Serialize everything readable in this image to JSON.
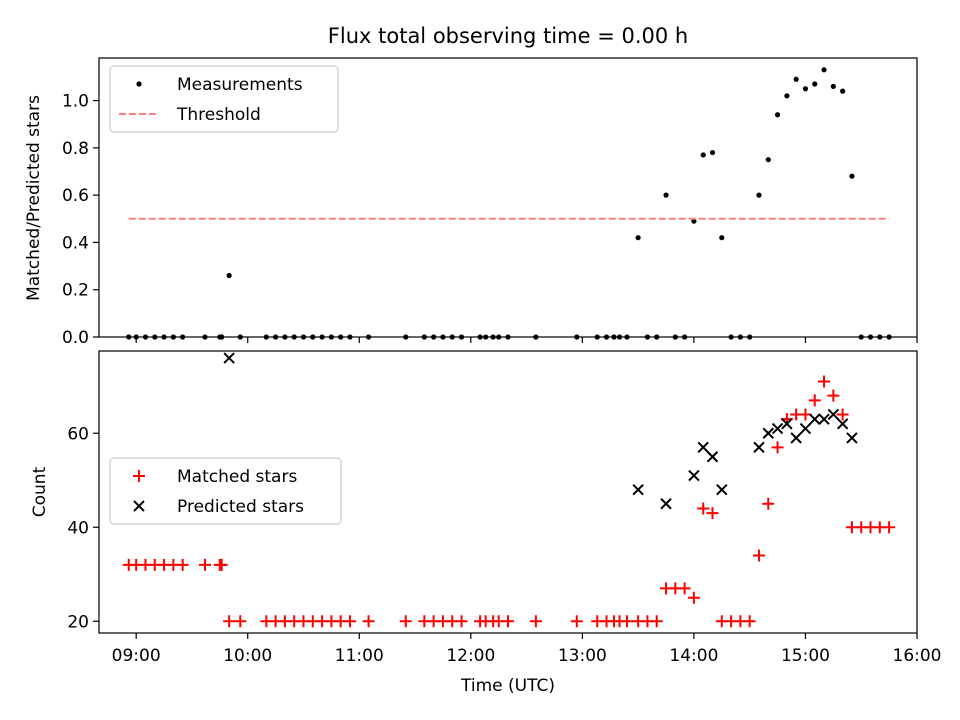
{
  "figure": {
    "title": "Flux total observing time = 0.00 h",
    "xlabel": "Time (UTC)",
    "x_tick_labels": [
      "09:00",
      "10:00",
      "11:00",
      "12:00",
      "13:00",
      "14:00",
      "15:00",
      "16:00"
    ],
    "colors": {
      "measurement": "#000000",
      "threshold": "#ff7f7f",
      "matched": "#ff0000",
      "predicted": "#000000"
    }
  },
  "chart_data": [
    {
      "type": "scatter",
      "title": "Flux total observing time = 0.00 h",
      "xlabel": "",
      "ylabel": "Matched/Predicted stars",
      "x_axis": "time (UTC)",
      "xlim": [
        "08:40",
        "16:00"
      ],
      "ylim": [
        0,
        1.18
      ],
      "yticks": [
        0.0,
        0.2,
        0.4,
        0.6,
        0.8,
        1.0
      ],
      "ytick_labels": [
        "0.0",
        "0.2",
        "0.4",
        "0.6",
        "0.8",
        "1.0"
      ],
      "legend_position": "upper-left",
      "legend": [
        "Measurements",
        "Threshold"
      ],
      "series": [
        {
          "name": "Measurements",
          "marker": "dot",
          "points": [
            [
              "08:56",
              0
            ],
            [
              "09:00",
              0
            ],
            [
              "09:05",
              0
            ],
            [
              "09:10",
              0
            ],
            [
              "09:15",
              0
            ],
            [
              "09:20",
              0
            ],
            [
              "09:25",
              0
            ],
            [
              "09:37",
              0
            ],
            [
              "09:45",
              0
            ],
            [
              "09:46",
              0
            ],
            [
              "09:50",
              0.26
            ],
            [
              "09:56",
              0
            ],
            [
              "10:10",
              0
            ],
            [
              "10:15",
              0
            ],
            [
              "10:20",
              0
            ],
            [
              "10:25",
              0
            ],
            [
              "10:30",
              0
            ],
            [
              "10:35",
              0
            ],
            [
              "10:40",
              0
            ],
            [
              "10:45",
              0
            ],
            [
              "10:50",
              0
            ],
            [
              "10:55",
              0
            ],
            [
              "11:05",
              0
            ],
            [
              "11:25",
              0
            ],
            [
              "11:35",
              0
            ],
            [
              "11:40",
              0
            ],
            [
              "11:45",
              0
            ],
            [
              "11:50",
              0
            ],
            [
              "11:55",
              0
            ],
            [
              "12:05",
              0
            ],
            [
              "12:08",
              0
            ],
            [
              "12:12",
              0
            ],
            [
              "12:15",
              0
            ],
            [
              "12:20",
              0
            ],
            [
              "12:35",
              0
            ],
            [
              "12:57",
              0
            ],
            [
              "13:08",
              0
            ],
            [
              "13:13",
              0
            ],
            [
              "13:17",
              0
            ],
            [
              "13:20",
              0
            ],
            [
              "13:24",
              0
            ],
            [
              "13:30",
              0.42
            ],
            [
              "13:35",
              0
            ],
            [
              "13:40",
              0
            ],
            [
              "13:45",
              0.6
            ],
            [
              "13:50",
              0
            ],
            [
              "13:55",
              0
            ],
            [
              "14:00",
              0.49
            ],
            [
              "14:05",
              0.77
            ],
            [
              "14:10",
              0.78
            ],
            [
              "14:15",
              0.42
            ],
            [
              "14:20",
              0
            ],
            [
              "14:25",
              0
            ],
            [
              "14:30",
              0
            ],
            [
              "14:35",
              0.6
            ],
            [
              "14:40",
              0.75
            ],
            [
              "14:45",
              0.94
            ],
            [
              "14:50",
              1.02
            ],
            [
              "14:55",
              1.09
            ],
            [
              "15:00",
              1.05
            ],
            [
              "15:05",
              1.07
            ],
            [
              "15:10",
              1.13
            ],
            [
              "15:15",
              1.06
            ],
            [
              "15:20",
              1.04
            ],
            [
              "15:25",
              0.68
            ],
            [
              "15:30",
              0
            ],
            [
              "15:35",
              0
            ],
            [
              "15:40",
              0
            ],
            [
              "15:45",
              0
            ]
          ]
        },
        {
          "name": "Threshold",
          "style": "dashed",
          "points": [
            [
              "08:56",
              0.5
            ],
            [
              "15:45",
              0.5
            ]
          ]
        }
      ]
    },
    {
      "type": "scatter",
      "title": "",
      "xlabel": "Time (UTC)",
      "ylabel": "Count",
      "x_axis": "time (UTC)",
      "xlim": [
        "08:40",
        "16:00"
      ],
      "ylim": [
        17.5,
        77.5
      ],
      "yticks": [
        20,
        40,
        60
      ],
      "ytick_labels": [
        "20",
        "40",
        "60"
      ],
      "legend_position": "center-left",
      "legend": [
        "Matched stars",
        "Predicted stars"
      ],
      "series": [
        {
          "name": "Matched stars",
          "marker": "plus",
          "points": [
            [
              "08:56",
              32
            ],
            [
              "09:00",
              32
            ],
            [
              "09:05",
              32
            ],
            [
              "09:10",
              32
            ],
            [
              "09:15",
              32
            ],
            [
              "09:20",
              32
            ],
            [
              "09:25",
              32
            ],
            [
              "09:37",
              32
            ],
            [
              "09:45",
              32
            ],
            [
              "09:46",
              32
            ],
            [
              "09:50",
              20
            ],
            [
              "09:56",
              20
            ],
            [
              "10:10",
              20
            ],
            [
              "10:15",
              20
            ],
            [
              "10:20",
              20
            ],
            [
              "10:25",
              20
            ],
            [
              "10:30",
              20
            ],
            [
              "10:35",
              20
            ],
            [
              "10:40",
              20
            ],
            [
              "10:45",
              20
            ],
            [
              "10:50",
              20
            ],
            [
              "10:55",
              20
            ],
            [
              "11:05",
              20
            ],
            [
              "11:25",
              20
            ],
            [
              "11:35",
              20
            ],
            [
              "11:40",
              20
            ],
            [
              "11:45",
              20
            ],
            [
              "11:50",
              20
            ],
            [
              "11:55",
              20
            ],
            [
              "12:05",
              20
            ],
            [
              "12:08",
              20
            ],
            [
              "12:12",
              20
            ],
            [
              "12:15",
              20
            ],
            [
              "12:20",
              20
            ],
            [
              "12:35",
              20
            ],
            [
              "12:57",
              20
            ],
            [
              "13:08",
              20
            ],
            [
              "13:13",
              20
            ],
            [
              "13:17",
              20
            ],
            [
              "13:20",
              20
            ],
            [
              "13:24",
              20
            ],
            [
              "13:30",
              20
            ],
            [
              "13:35",
              20
            ],
            [
              "13:40",
              20
            ],
            [
              "13:45",
              27
            ],
            [
              "13:50",
              27
            ],
            [
              "13:55",
              27
            ],
            [
              "14:00",
              25
            ],
            [
              "14:05",
              44
            ],
            [
              "14:10",
              43
            ],
            [
              "14:15",
              20
            ],
            [
              "14:20",
              20
            ],
            [
              "14:25",
              20
            ],
            [
              "14:30",
              20
            ],
            [
              "14:35",
              34
            ],
            [
              "14:40",
              45
            ],
            [
              "14:45",
              57
            ],
            [
              "14:50",
              63
            ],
            [
              "14:55",
              64
            ],
            [
              "15:00",
              64
            ],
            [
              "15:05",
              67
            ],
            [
              "15:10",
              71
            ],
            [
              "15:15",
              68
            ],
            [
              "15:20",
              64
            ],
            [
              "15:25",
              40
            ],
            [
              "15:30",
              40
            ],
            [
              "15:35",
              40
            ],
            [
              "15:40",
              40
            ],
            [
              "15:45",
              40
            ]
          ]
        },
        {
          "name": "Predicted stars",
          "marker": "x",
          "points": [
            [
              "09:50",
              76
            ],
            [
              "13:30",
              48
            ],
            [
              "13:45",
              45
            ],
            [
              "14:00",
              51
            ],
            [
              "14:05",
              57
            ],
            [
              "14:10",
              55
            ],
            [
              "14:15",
              48
            ],
            [
              "14:35",
              57
            ],
            [
              "14:40",
              60
            ],
            [
              "14:45",
              61
            ],
            [
              "14:50",
              62
            ],
            [
              "14:55",
              59
            ],
            [
              "15:00",
              61
            ],
            [
              "15:05",
              63
            ],
            [
              "15:10",
              63
            ],
            [
              "15:15",
              64
            ],
            [
              "15:20",
              62
            ],
            [
              "15:25",
              59
            ]
          ]
        }
      ]
    }
  ]
}
